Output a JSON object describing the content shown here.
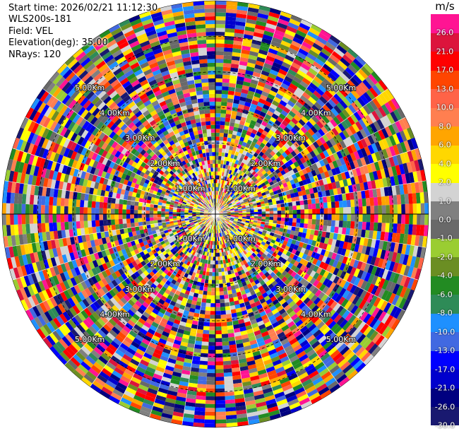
{
  "header": {
    "start_time": "Start time: 2026/02/21 11:12:30",
    "instrument": "WLS200s-181",
    "field": "Field: VEL",
    "elevation": "Elevation(deg): 35.00",
    "nrays": "NRays: 120"
  },
  "chart_data": {
    "type": "heatmap",
    "projection": "polar PPI",
    "field": "VEL",
    "elevation_deg": 35.0,
    "n_rays": 120,
    "range_rings_km": [
      1,
      2,
      3,
      4,
      5
    ],
    "range_ring_labels": [
      "1.00Km",
      "2.00Km",
      "3.00Km",
      "4.00Km",
      "5.00Km"
    ],
    "max_range_km": 6.0,
    "colorbar": {
      "unit": "m/s",
      "bounds": [
        -30.0,
        -26.0,
        -21.0,
        -17.0,
        -13.0,
        -10.0,
        -8.0,
        -6.0,
        -4.0,
        -2.0,
        -1.0,
        0.0,
        1.0,
        2.0,
        4.0,
        6.0,
        8.0,
        10.0,
        13.0,
        17.0,
        21.0,
        26.0,
        30.0
      ],
      "tick_labels": [
        "-30.0",
        "-26.0",
        "-21.0",
        "-17.0",
        "-13.0",
        "-10.0",
        "-8.0",
        "-6.0",
        "-4.0",
        "-2.0",
        "-1.0",
        "0.0",
        "1.0",
        "2.0",
        "4.0",
        "6.0",
        "8.0",
        "10.0",
        "13.0",
        "17.0",
        "21.0",
        "26.0"
      ],
      "colors": [
        "#191970",
        "#000080",
        "#0000cd",
        "#0000ff",
        "#4169e1",
        "#1e90ff",
        "#2e8b57",
        "#228b22",
        "#6b8e23",
        "#9acd32",
        "#696969",
        "#808080",
        "#d3d3d3",
        "#ffff00",
        "#ffd700",
        "#ffa500",
        "#ff7f50",
        "#ff6347",
        "#ff4500",
        "#ff0000",
        "#dc143c",
        "#ff1493"
      ]
    },
    "velocity_field": "noisy, spans full colour scale at all ranges"
  }
}
